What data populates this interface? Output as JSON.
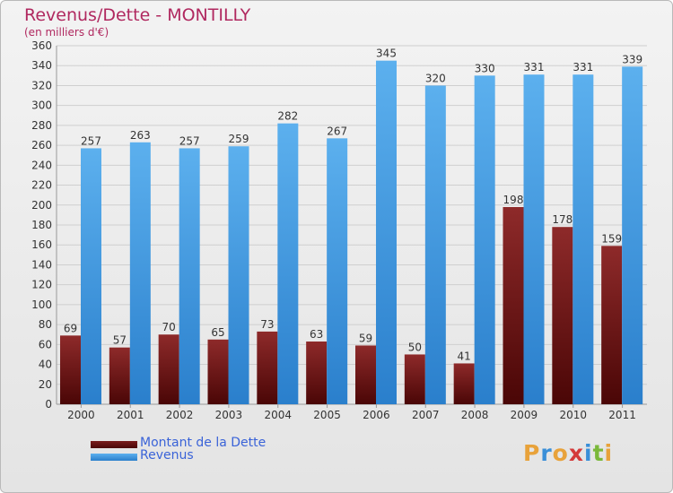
{
  "title": "Revenus/Dette - MONTILLY",
  "subtitle": "(en milliers d'€)",
  "legend": {
    "debt_label": "Montant de la Dette",
    "revenue_label": "Revenus"
  },
  "logo_text": "Proxiti",
  "colors": {
    "debt": "#7a1c1c",
    "revenue": "#4fa3e6",
    "title": "#b0285f",
    "legend_text": "#3a63d8"
  },
  "chart_data": {
    "type": "bar",
    "categories": [
      "2000",
      "2001",
      "2002",
      "2003",
      "2004",
      "2005",
      "2006",
      "2007",
      "2008",
      "2009",
      "2010",
      "2011"
    ],
    "series": [
      {
        "name": "Montant de la Dette",
        "values": [
          69,
          57,
          70,
          65,
          73,
          63,
          59,
          50,
          41,
          198,
          178,
          159
        ]
      },
      {
        "name": "Revenus",
        "values": [
          257,
          263,
          257,
          259,
          282,
          267,
          345,
          320,
          330,
          331,
          331,
          339
        ]
      }
    ],
    "yticks": [
      0,
      20,
      40,
      60,
      80,
      100,
      120,
      140,
      160,
      180,
      200,
      220,
      240,
      260,
      280,
      300,
      320,
      340,
      360
    ],
    "ylim": [
      0,
      360
    ],
    "grid": true,
    "legend_position": "bottom-left"
  }
}
